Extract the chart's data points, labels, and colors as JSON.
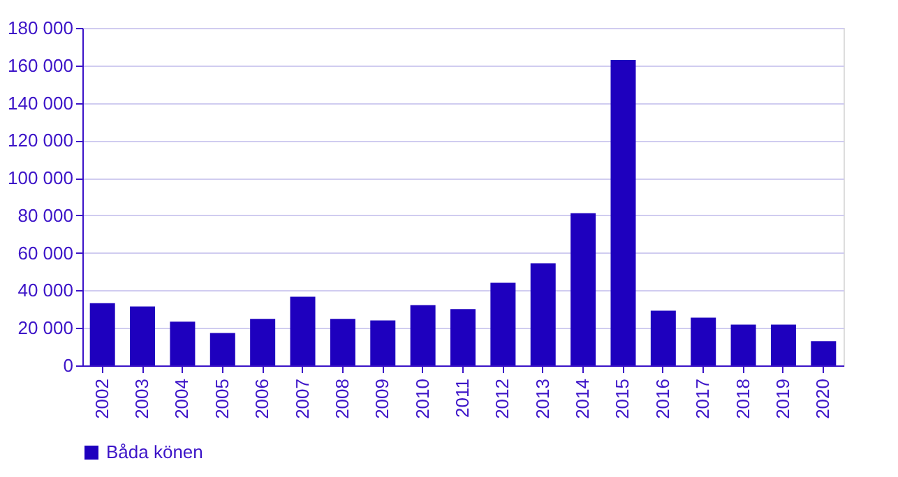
{
  "chart_data": {
    "type": "bar",
    "categories": [
      "2002",
      "2003",
      "2004",
      "2005",
      "2006",
      "2007",
      "2008",
      "2009",
      "2010",
      "2011",
      "2012",
      "2013",
      "2014",
      "2015",
      "2016",
      "2017",
      "2018",
      "2019",
      "2020"
    ],
    "series": [
      {
        "name": "Båda könen",
        "color": "#1e00be",
        "values": [
          33200,
          31400,
          23300,
          17300,
          24800,
          36600,
          24800,
          24000,
          32200,
          30000,
          44100,
          54500,
          81200,
          162900,
          29200,
          25500,
          21800,
          21800,
          12900
        ]
      }
    ],
    "ylim": [
      0,
      180000
    ],
    "yticks": [
      {
        "value": 0,
        "label": "0"
      },
      {
        "value": 20000,
        "label": "20 000"
      },
      {
        "value": 40000,
        "label": "40 000"
      },
      {
        "value": 60000,
        "label": "60 000"
      },
      {
        "value": 80000,
        "label": "80 000"
      },
      {
        "value": 100000,
        "label": "100 000"
      },
      {
        "value": 120000,
        "label": "120 000"
      },
      {
        "value": 140000,
        "label": "140 000"
      },
      {
        "value": 160000,
        "label": "160 000"
      },
      {
        "value": 180000,
        "label": "180 000"
      }
    ],
    "grid": "y",
    "legend": "bottom"
  }
}
